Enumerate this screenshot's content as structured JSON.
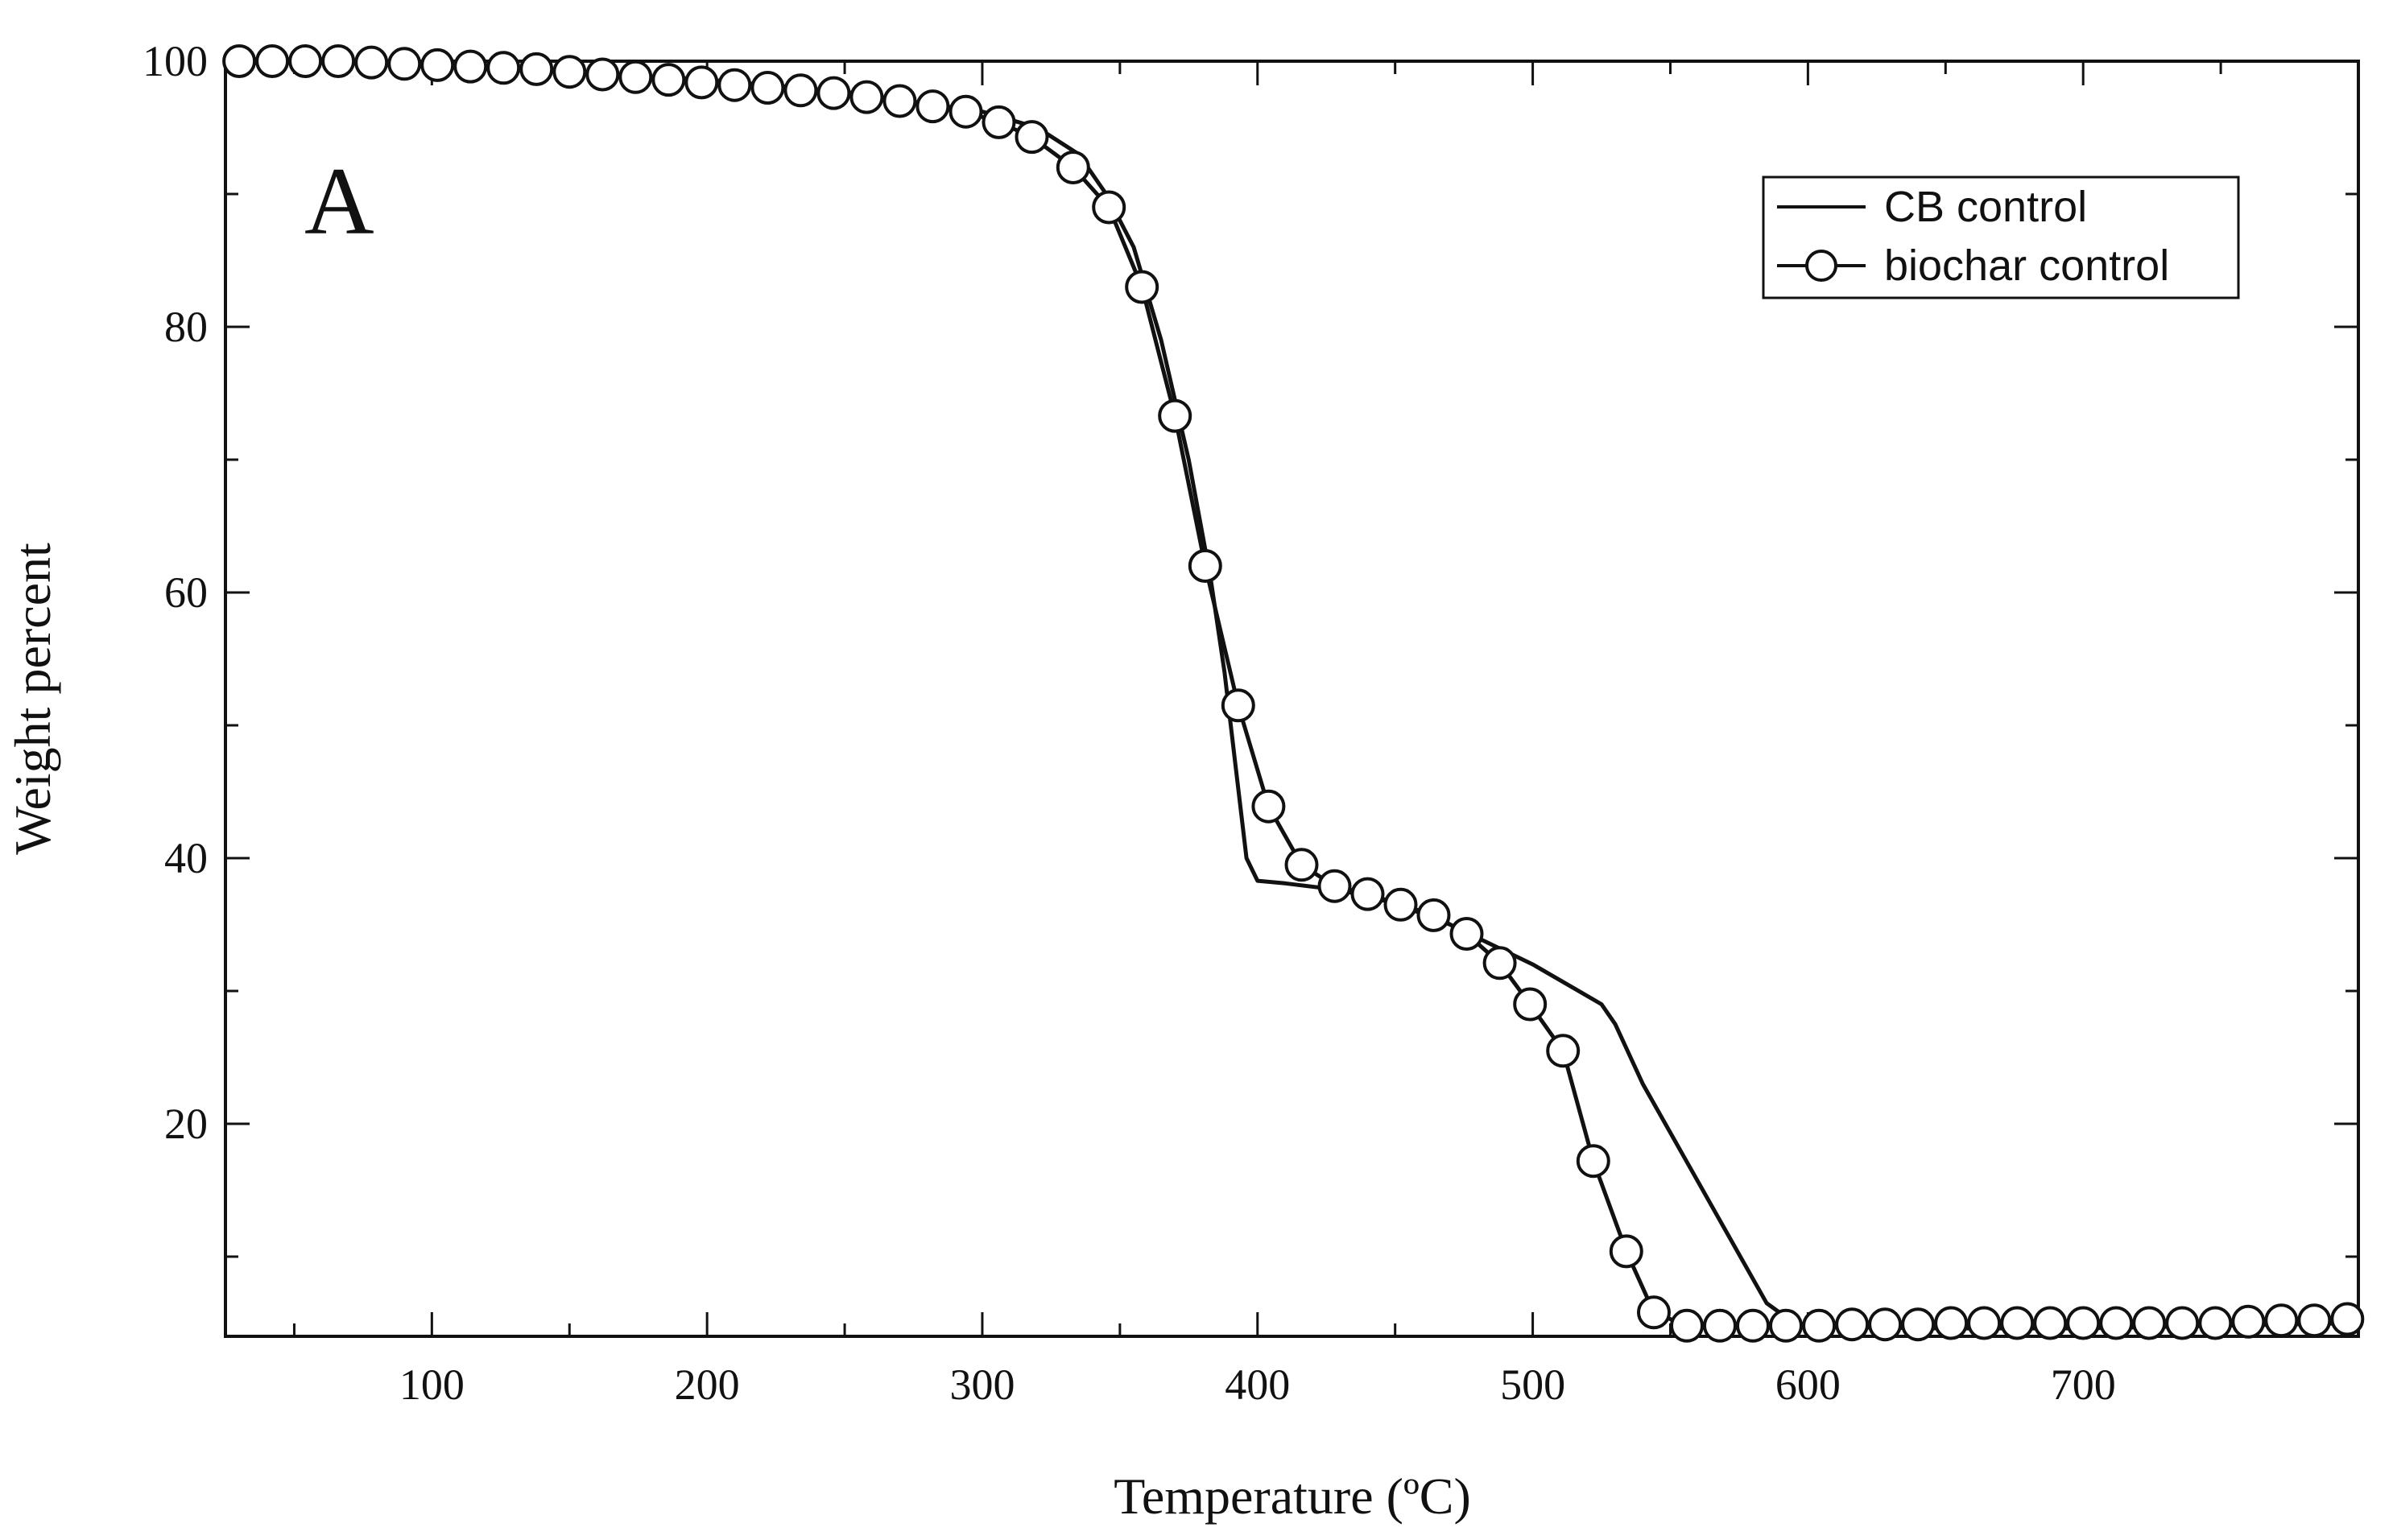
{
  "chart_data": {
    "type": "line",
    "panel_label": "A",
    "xlabel": "Temperature (ºC)",
    "ylabel": "Weight percent",
    "xlim": [
      25,
      800
    ],
    "ylim": [
      4,
      100
    ],
    "x_ticks": [
      100,
      200,
      300,
      400,
      500,
      600,
      700
    ],
    "x_tick_labels": [
      "100",
      "200",
      "300",
      "400",
      "500",
      "600",
      "700"
    ],
    "y_ticks": [
      20,
      40,
      60,
      80,
      100
    ],
    "y_tick_labels": [
      "20",
      "40",
      "60",
      "80",
      "100"
    ],
    "legend_position": "top-right",
    "series": [
      {
        "name": "CB control",
        "marker": "none",
        "color": "#111111",
        "points": [
          [
            25,
            100
          ],
          [
            50,
            100
          ],
          [
            100,
            99.6
          ],
          [
            150,
            99.2
          ],
          [
            200,
            98.6
          ],
          [
            250,
            97.7
          ],
          [
            300,
            96.2
          ],
          [
            320,
            95.0
          ],
          [
            335,
            93.0
          ],
          [
            345,
            90.0
          ],
          [
            355,
            86.0
          ],
          [
            365,
            79.0
          ],
          [
            375,
            70.0
          ],
          [
            383,
            61.0
          ],
          [
            388,
            54.0
          ],
          [
            392,
            47.0
          ],
          [
            396,
            40.0
          ],
          [
            400,
            38.3
          ],
          [
            410,
            38.1
          ],
          [
            430,
            37.6
          ],
          [
            450,
            36.6
          ],
          [
            470,
            35.0
          ],
          [
            480,
            34.0
          ],
          [
            500,
            32.0
          ],
          [
            515,
            30.2
          ],
          [
            525,
            29.0
          ],
          [
            530,
            27.5
          ],
          [
            540,
            23.0
          ],
          [
            555,
            17.5
          ],
          [
            570,
            12.0
          ],
          [
            585,
            6.5
          ],
          [
            595,
            5.0
          ],
          [
            610,
            4.7
          ],
          [
            650,
            4.6
          ],
          [
            700,
            4.6
          ],
          [
            750,
            4.8
          ],
          [
            800,
            5.0
          ]
        ]
      },
      {
        "name": "biochar control",
        "marker": "circle",
        "color": "#111111",
        "points": [
          [
            30,
            100
          ],
          [
            42,
            100
          ],
          [
            54,
            100
          ],
          [
            66,
            100
          ],
          [
            78,
            99.9
          ],
          [
            90,
            99.8
          ],
          [
            102,
            99.7
          ],
          [
            114,
            99.6
          ],
          [
            126,
            99.5
          ],
          [
            138,
            99.4
          ],
          [
            150,
            99.2
          ],
          [
            162,
            99.0
          ],
          [
            174,
            98.8
          ],
          [
            186,
            98.6
          ],
          [
            198,
            98.4
          ],
          [
            210,
            98.2
          ],
          [
            222,
            98.0
          ],
          [
            234,
            97.8
          ],
          [
            246,
            97.6
          ],
          [
            258,
            97.3
          ],
          [
            270,
            97.0
          ],
          [
            282,
            96.6
          ],
          [
            294,
            96.2
          ],
          [
            306,
            95.4
          ],
          [
            318,
            94.3
          ],
          [
            333,
            92.0
          ],
          [
            346,
            89.0
          ],
          [
            358,
            83.0
          ],
          [
            370,
            73.3
          ],
          [
            381,
            62.0
          ],
          [
            393,
            51.5
          ],
          [
            404,
            43.9
          ],
          [
            416,
            39.5
          ],
          [
            428,
            37.9
          ],
          [
            440,
            37.3
          ],
          [
            452,
            36.5
          ],
          [
            464,
            35.7
          ],
          [
            476,
            34.3
          ],
          [
            488,
            32.1
          ],
          [
            499,
            29.0
          ],
          [
            511,
            25.5
          ],
          [
            522,
            17.2
          ],
          [
            534,
            10.4
          ],
          [
            544,
            5.8
          ],
          [
            556,
            4.8
          ],
          [
            568,
            4.8
          ],
          [
            580,
            4.8
          ],
          [
            592,
            4.8
          ],
          [
            604,
            4.8
          ],
          [
            616,
            4.9
          ],
          [
            628,
            4.9
          ],
          [
            640,
            4.9
          ],
          [
            652,
            5.0
          ],
          [
            664,
            5.0
          ],
          [
            676,
            5.0
          ],
          [
            688,
            5.0
          ],
          [
            700,
            5.0
          ],
          [
            712,
            5.0
          ],
          [
            724,
            5.0
          ],
          [
            736,
            5.0
          ],
          [
            748,
            5.0
          ],
          [
            760,
            5.1
          ],
          [
            772,
            5.2
          ],
          [
            784,
            5.2
          ],
          [
            796,
            5.3
          ]
        ]
      }
    ]
  }
}
